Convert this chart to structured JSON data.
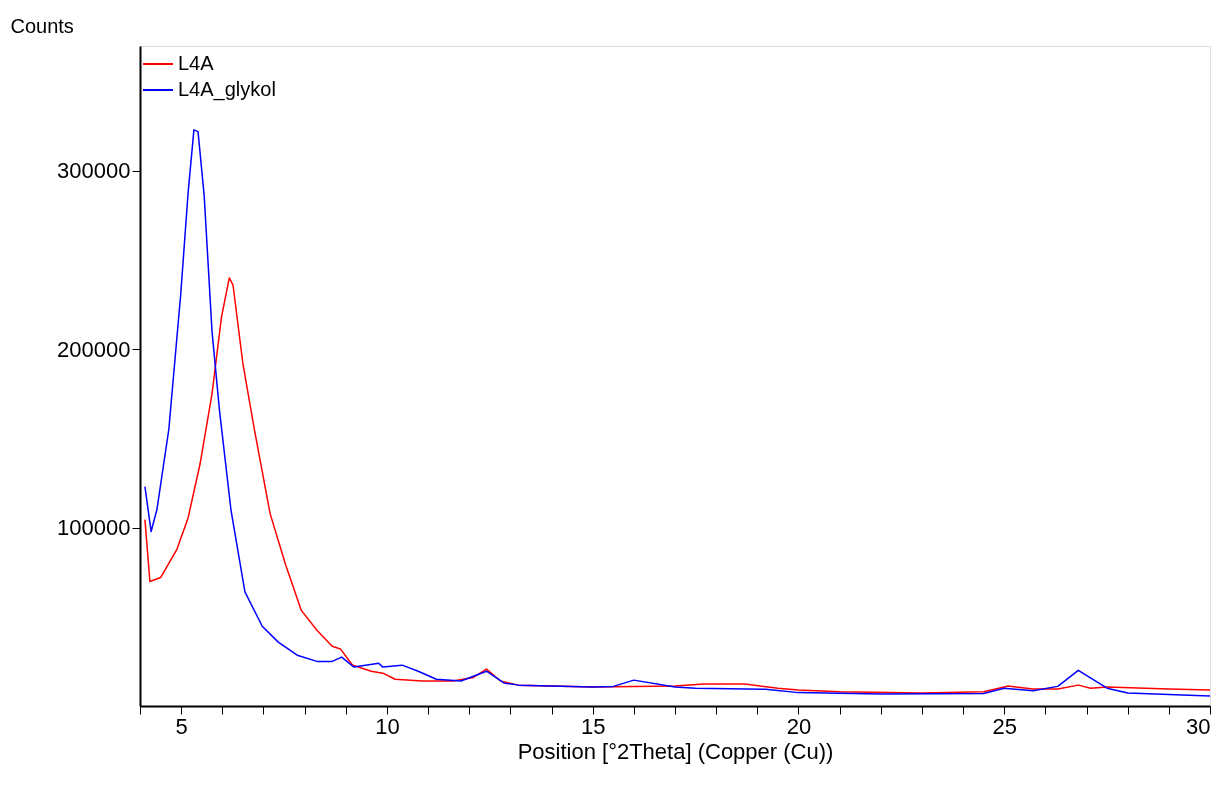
{
  "chart_data": {
    "type": "line",
    "xlabel": "Position [°2Theta] (Copper (Cu))",
    "ylabel": "Counts",
    "xlim": [
      4,
      30
    ],
    "ylim": [
      0,
      370000
    ],
    "xticks": [
      {
        "value": 4,
        "label": null
      },
      5,
      {
        "value": 6,
        "label": null
      },
      {
        "value": 7,
        "label": null
      },
      {
        "value": 8,
        "label": null
      },
      {
        "value": 9,
        "label": null
      },
      10,
      {
        "value": 11,
        "label": null
      },
      {
        "value": 12,
        "label": null
      },
      {
        "value": 13,
        "label": null
      },
      {
        "value": 14,
        "label": null
      },
      15,
      {
        "value": 16,
        "label": null
      },
      {
        "value": 17,
        "label": null
      },
      {
        "value": 18,
        "label": null
      },
      {
        "value": 19,
        "label": null
      },
      20,
      {
        "value": 21,
        "label": null
      },
      {
        "value": 22,
        "label": null
      },
      {
        "value": 23,
        "label": null
      },
      {
        "value": 24,
        "label": null
      },
      25,
      {
        "value": 26,
        "label": null
      },
      {
        "value": 27,
        "label": null
      },
      {
        "value": 28,
        "label": null
      },
      {
        "value": 29,
        "label": null
      },
      30
    ],
    "yticks": [
      100000,
      200000,
      300000
    ],
    "grid": false,
    "legend": "top left",
    "marker": "none",
    "line_style": "solid",
    "series": [
      {
        "name": "L4A",
        "color": "#ff0000",
        "x": [
          4.12,
          4.24,
          4.5,
          4.9,
          5.17,
          5.46,
          5.75,
          5.98,
          6.17,
          6.26,
          6.5,
          6.78,
          7.16,
          7.54,
          7.92,
          8.3,
          8.67,
          8.87,
          9.16,
          9.62,
          9.9,
          10.2,
          10.86,
          11.6,
          12.1,
          12.42,
          12.76,
          13.2,
          15,
          16,
          17,
          17.7,
          18.7,
          19.5,
          20,
          21,
          23,
          24.5,
          25.1,
          25.7,
          26.3,
          26.8,
          27.1,
          27.5,
          29,
          30
        ],
        "values": [
          104500,
          69800,
          72000,
          88000,
          105600,
          135800,
          175000,
          218000,
          240000,
          236000,
          192000,
          155000,
          108000,
          79000,
          53600,
          42500,
          33500,
          32000,
          23000,
          19500,
          18400,
          15000,
          14000,
          14000,
          16000,
          20700,
          14000,
          11700,
          10600,
          11000,
          11200,
          12300,
          12300,
          10000,
          9000,
          8000,
          7300,
          8000,
          11200,
          9500,
          9500,
          11700,
          10000,
          10600,
          9500,
          8900
        ]
      },
      {
        "name": "L4A_glykol",
        "color": "#0000ff",
        "x": [
          4.12,
          4.27,
          4.41,
          4.7,
          4.99,
          5.17,
          5.31,
          5.41,
          5.56,
          5.75,
          5.93,
          6.21,
          6.55,
          6.97,
          7.36,
          7.82,
          8.3,
          8.67,
          8.9,
          9.2,
          9.8,
          9.9,
          10.37,
          10.76,
          11.2,
          11.8,
          12.42,
          12.84,
          13.2,
          15,
          15.5,
          16,
          17,
          17.5,
          19.2,
          20,
          22,
          24.5,
          25,
          25.7,
          26.3,
          26.8,
          27.5,
          28,
          29,
          30
        ],
        "values": [
          123000,
          97800,
          110000,
          155000,
          231000,
          288000,
          323000,
          322000,
          286000,
          210000,
          166000,
          110000,
          64000,
          44700,
          35800,
          28500,
          25000,
          25000,
          27400,
          21800,
          24000,
          21800,
          22900,
          19500,
          15000,
          14000,
          19500,
          12900,
          11700,
          10600,
          11000,
          14500,
          10600,
          10000,
          9400,
          7500,
          6700,
          7000,
          10000,
          8500,
          11000,
          20000,
          10000,
          7300,
          6500,
          5600
        ]
      }
    ]
  }
}
